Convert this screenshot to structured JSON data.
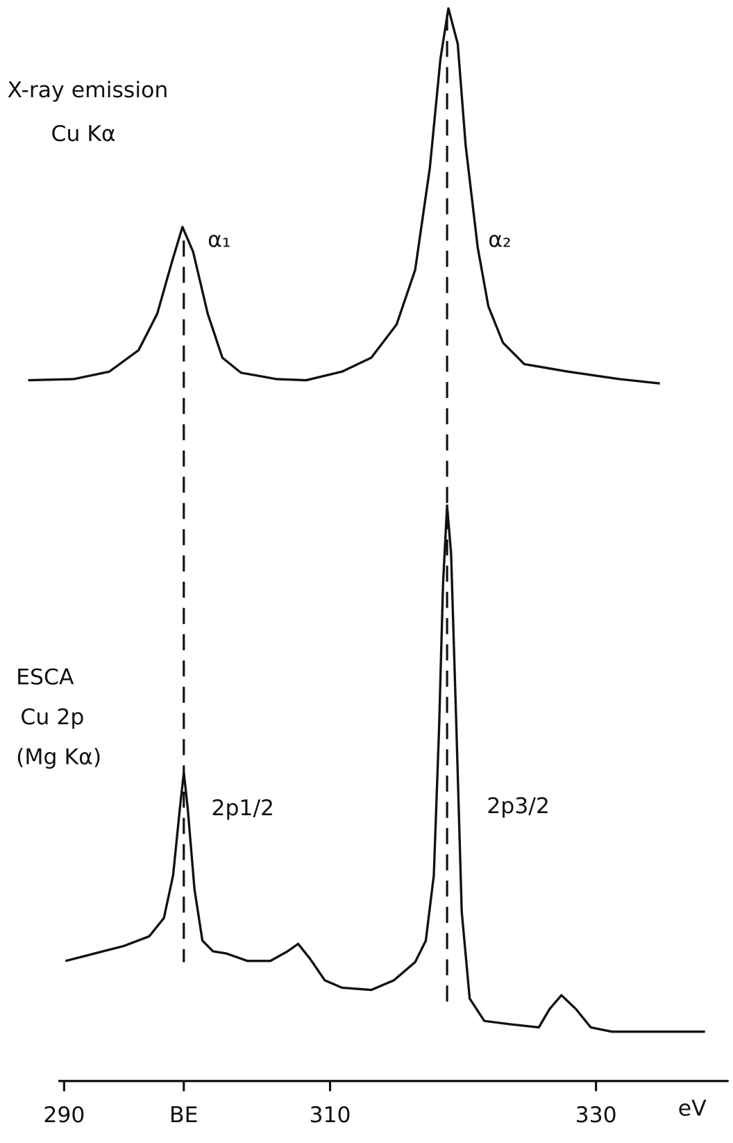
{
  "chart_data": {
    "type": "line",
    "x_label": "eV",
    "xlim": [
      287.3,
      340
    ],
    "xticks": [
      290,
      {
        "value": 299,
        "label": "BE"
      },
      310,
      330
    ],
    "ylim": [
      0,
      100
    ],
    "reference_lines": [
      299,
      318.8
    ],
    "annotations": [
      "X-ray emission",
      "Cu Kα",
      "α₁",
      "α₂",
      "ESCA",
      "Cu 2p",
      "(Mg Kα)",
      "2p1/2",
      "2p3/2"
    ],
    "series": [
      {
        "color": "#111111",
        "x": [
          287.3,
          290.7,
          293.4,
          295.6,
          297.0,
          298.1,
          298.9,
          299.7,
          300.8,
          301.9,
          303.3,
          306.0,
          308.2,
          310.9,
          313.1,
          315.0,
          316.4,
          317.5,
          318.3,
          318.9,
          319.6,
          320.2,
          321.1,
          321.9,
          323.0,
          324.6,
          327.9,
          331.8,
          334.8
        ],
        "values": [
          65.2,
          65.3,
          66.0,
          68.0,
          71.4,
          76.2,
          79.5,
          77.2,
          71.4,
          67.3,
          65.9,
          65.3,
          65.2,
          66.0,
          67.3,
          70.4,
          75.5,
          85.0,
          95.2,
          99.9,
          96.6,
          87.1,
          77.6,
          72.1,
          68.7,
          66.7,
          66.0,
          65.3,
          64.9
        ]
      },
      {
        "color": "#111111",
        "x": [
          290.1,
          292.3,
          294.5,
          296.4,
          297.5,
          298.2,
          298.7,
          299.0,
          299.3,
          299.8,
          300.4,
          301.2,
          302.2,
          303.8,
          305.5,
          306.8,
          307.6,
          308.5,
          309.6,
          310.9,
          313.1,
          314.8,
          316.4,
          317.2,
          317.8,
          318.2,
          318.5,
          318.8,
          319.1,
          319.5,
          319.9,
          320.5,
          321.6,
          323.5,
          325.7,
          326.5,
          327.4,
          328.5,
          329.6,
          331.2,
          334.5,
          338.2
        ],
        "values": [
          11.0,
          11.7,
          12.4,
          13.3,
          15.0,
          19.0,
          25.2,
          28.6,
          25.2,
          17.7,
          12.9,
          11.9,
          11.7,
          11.0,
          11.0,
          11.9,
          12.6,
          11.2,
          9.2,
          8.5,
          8.3,
          9.2,
          10.9,
          12.9,
          19.0,
          32.7,
          46.3,
          53.5,
          49.0,
          32.7,
          15.6,
          7.5,
          5.4,
          5.1,
          4.8,
          6.5,
          7.8,
          6.5,
          4.8,
          4.4,
          4.4,
          4.4
        ]
      }
    ]
  }
}
